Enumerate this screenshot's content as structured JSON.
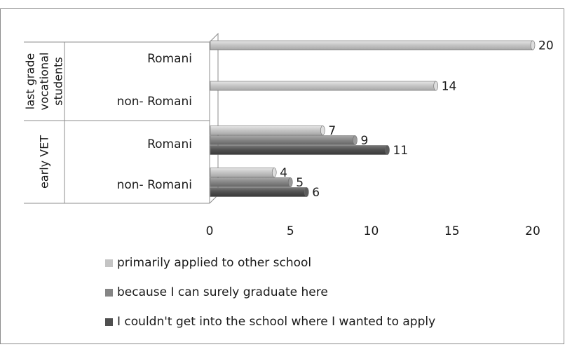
{
  "chart_data": {
    "type": "bar",
    "orientation": "horizontal",
    "groups": [
      {
        "label": "last grade vocational students",
        "label_lines": [
          "last grade",
          "vocational",
          "students"
        ],
        "categories": [
          "Romani",
          "non- Romani"
        ]
      },
      {
        "label": "early VET",
        "label_lines": [
          "early VET"
        ],
        "categories": [
          "Romani",
          "non- Romani"
        ]
      }
    ],
    "categories": [
      "last grade vocational students / Romani",
      "last grade vocational students / non- Romani",
      "early VET / Romani",
      "early VET / non- Romani"
    ],
    "series": [
      {
        "name": "primarily applied to other school",
        "color": "#c4c4c4",
        "values": [
          20,
          14,
          7,
          4
        ]
      },
      {
        "name": "because I can surely graduate here",
        "color": "#858585",
        "values": [
          null,
          null,
          9,
          5
        ]
      },
      {
        "name": "I couldn't get into the school where I wanted to apply",
        "color": "#4f4f4f",
        "values": [
          null,
          null,
          11,
          6
        ]
      }
    ],
    "xlim": [
      0,
      20
    ],
    "xticks": [
      "0",
      "5",
      "10",
      "15",
      "20"
    ],
    "data_labels": true,
    "grid": false,
    "legend_position": "bottom"
  }
}
